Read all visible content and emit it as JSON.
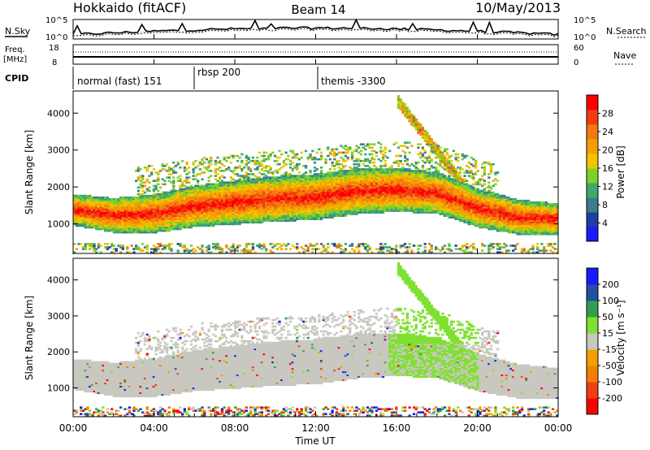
{
  "header": {
    "station": "Hokkaido (fitACF)",
    "beam": "Beam 14",
    "date": "10/May/2013"
  },
  "top_panels": {
    "nsky_label": "N.Sky",
    "nsearch_label": "N.Search",
    "freq_label": "Freq.",
    "freq_unit": "[MHz]",
    "nave_label": "Nave",
    "cpid_label": "CPID",
    "noise_ticks": [
      "10^5",
      "10^0"
    ],
    "freq_ticks": [
      "18",
      "8"
    ],
    "nave_ticks": [
      "60",
      "0"
    ]
  },
  "cpid_segments": [
    {
      "label": "normal (fast) 151",
      "start_h": 0.0
    },
    {
      "label": "rbsp 200",
      "start_h": 6.0
    },
    {
      "label": "themis -3300",
      "start_h": 12.0
    }
  ],
  "colors": {
    "power_scale": [
      "#1a1aff",
      "#1f3fa0",
      "#3a7d8c",
      "#3ea870",
      "#7fd02a",
      "#f2c400",
      "#f6a000",
      "#f47a10",
      "#f23c10",
      "#ff0000"
    ],
    "velocity_scale": [
      "#ff0000",
      "#f04010",
      "#f08000",
      "#f0a000",
      "#c8c8c0",
      "#80e030",
      "#30a050",
      "#2050a0",
      "#1a1aff"
    ]
  },
  "chart_data": [
    {
      "type": "heatmap",
      "name": "power",
      "ylabel": "Slant Range [km]",
      "x_range": [
        0,
        24
      ],
      "ylim": [
        200,
        4600
      ],
      "y_ticks": [
        1000,
        2000,
        3000,
        4000
      ],
      "colorbar_label": "Power [dB]",
      "colorbar_ticks": [
        "28",
        "24",
        "20",
        "16",
        "12",
        "8",
        "4"
      ],
      "colorbar_range": [
        0,
        32
      ],
      "main_band_center_km": [
        [
          0,
          1350
        ],
        [
          2,
          1200
        ],
        [
          4,
          1250
        ],
        [
          6,
          1450
        ],
        [
          8,
          1550
        ],
        [
          10,
          1650
        ],
        [
          12,
          1700
        ],
        [
          14,
          1850
        ],
        [
          16,
          1900
        ],
        [
          18,
          1800
        ],
        [
          19,
          1600
        ],
        [
          20,
          1400
        ],
        [
          22,
          1150
        ],
        [
          24,
          1100
        ]
      ]
    },
    {
      "type": "heatmap",
      "name": "velocity",
      "ylabel": "Slant Range [km]",
      "xlabel": "Time UT",
      "x_range": [
        0,
        24
      ],
      "x_ticks": [
        "00:00",
        "04:00",
        "08:00",
        "12:00",
        "16:00",
        "20:00",
        "00:00"
      ],
      "ylim": [
        200,
        4600
      ],
      "y_ticks": [
        1000,
        2000,
        3000,
        4000
      ],
      "colorbar_label": "Velocity [m s⁻¹]",
      "colorbar_ticks": [
        "200",
        "100",
        "50",
        "15",
        "-15",
        "-50",
        "-100",
        "-200"
      ]
    }
  ]
}
